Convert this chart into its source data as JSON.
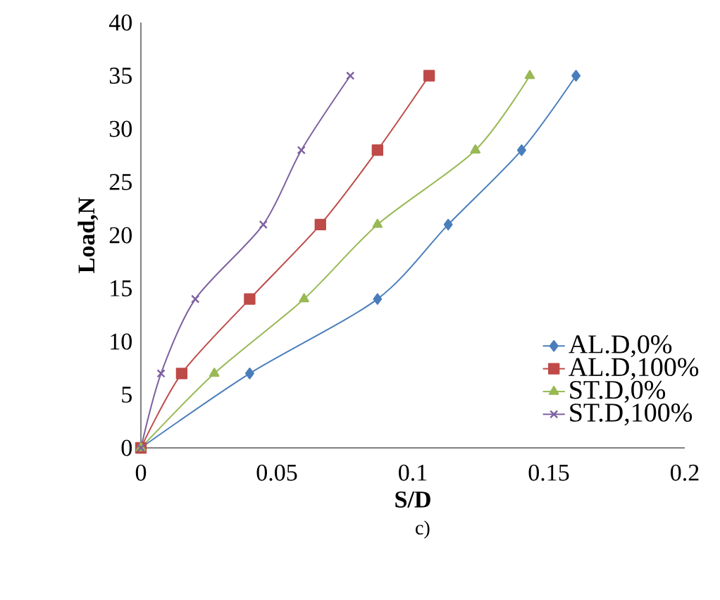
{
  "chart_data": {
    "type": "line",
    "xlabel": "S/D",
    "ylabel": "Load,N",
    "annotations": [
      "c)"
    ],
    "xlim": [
      0,
      0.2
    ],
    "ylim": [
      0,
      40
    ],
    "xticks": [
      0,
      0.05,
      0.1,
      0.15,
      0.2
    ],
    "yticks": [
      0,
      5,
      10,
      15,
      20,
      25,
      30,
      35,
      40
    ],
    "grid": false,
    "legend": "bottom right",
    "series": [
      {
        "name": "AL.D,0%",
        "color": "#4a7ebb",
        "marker": "diamond",
        "x": [
          0,
          0.04,
          0.087,
          0.113,
          0.14,
          0.16
        ],
        "values": [
          0,
          7,
          14,
          21,
          28,
          35
        ]
      },
      {
        "name": "AL.D,100%",
        "color": "#be4b48",
        "marker": "square",
        "x": [
          0,
          0.015,
          0.04,
          0.066,
          0.087,
          0.106
        ],
        "values": [
          0,
          7,
          14,
          21,
          28,
          35
        ]
      },
      {
        "name": "ST.D,0%",
        "color": "#98b954",
        "marker": "triangle",
        "x": [
          0,
          0.027,
          0.06,
          0.087,
          0.123,
          0.143
        ],
        "values": [
          0,
          7,
          14,
          21,
          28,
          35
        ]
      },
      {
        "name": "ST.D,100%",
        "color": "#7d60a0",
        "marker": "cross",
        "x": [
          0,
          0.0074,
          0.02,
          0.045,
          0.059,
          0.077
        ],
        "values": [
          0,
          7,
          14,
          21,
          28,
          35
        ]
      }
    ]
  }
}
